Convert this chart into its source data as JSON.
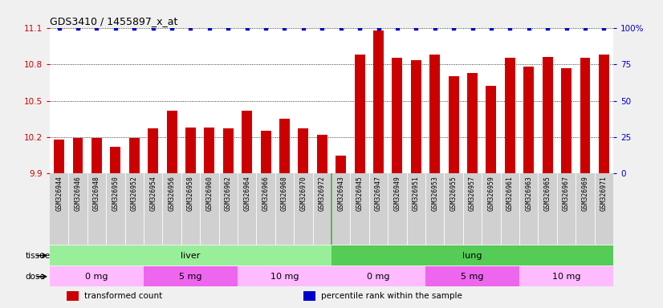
{
  "title": "GDS3410 / 1455897_x_at",
  "samples": [
    "GSM326944",
    "GSM326946",
    "GSM326948",
    "GSM326950",
    "GSM326952",
    "GSM326954",
    "GSM326956",
    "GSM326958",
    "GSM326960",
    "GSM326962",
    "GSM326964",
    "GSM326966",
    "GSM326968",
    "GSM326970",
    "GSM326972",
    "GSM326943",
    "GSM326945",
    "GSM326947",
    "GSM326949",
    "GSM326951",
    "GSM326953",
    "GSM326955",
    "GSM326957",
    "GSM326959",
    "GSM326961",
    "GSM326963",
    "GSM326965",
    "GSM326967",
    "GSM326969",
    "GSM326971"
  ],
  "bar_values": [
    10.18,
    10.19,
    10.19,
    10.12,
    10.19,
    10.27,
    10.42,
    10.28,
    10.28,
    10.27,
    10.42,
    10.25,
    10.35,
    10.27,
    10.22,
    10.05,
    10.88,
    11.08,
    10.85,
    10.83,
    10.88,
    10.7,
    10.73,
    10.62,
    10.85,
    10.78,
    10.86,
    10.77,
    10.85,
    10.88
  ],
  "ymin": 9.9,
  "ymax": 11.1,
  "yticks": [
    9.9,
    10.2,
    10.5,
    10.8,
    11.1
  ],
  "y2min": 0,
  "y2max": 100,
  "y2ticks": [
    0,
    25,
    50,
    75,
    100
  ],
  "bar_color": "#cc0000",
  "dot_color": "#0000cc",
  "tick_label_bg": "#d0d0d0",
  "plot_bg_color": "#ffffff",
  "fig_bg_color": "#f0f0f0",
  "tissue_groups": [
    {
      "label": "liver",
      "start": 0,
      "end": 14,
      "color": "#99ee99"
    },
    {
      "label": "lung",
      "start": 15,
      "end": 29,
      "color": "#55cc55"
    }
  ],
  "dose_groups": [
    {
      "label": "0 mg",
      "start": 0,
      "end": 4,
      "color": "#ffbbff"
    },
    {
      "label": "5 mg",
      "start": 5,
      "end": 9,
      "color": "#ee66ee"
    },
    {
      "label": "10 mg",
      "start": 10,
      "end": 14,
      "color": "#ffbbff"
    },
    {
      "label": "0 mg",
      "start": 15,
      "end": 19,
      "color": "#ffbbff"
    },
    {
      "label": "5 mg",
      "start": 20,
      "end": 24,
      "color": "#ee66ee"
    },
    {
      "label": "10 mg",
      "start": 25,
      "end": 29,
      "color": "#ffbbff"
    }
  ],
  "legend_items": [
    {
      "label": "transformed count",
      "color": "#cc0000"
    },
    {
      "label": "percentile rank within the sample",
      "color": "#0000cc"
    }
  ]
}
